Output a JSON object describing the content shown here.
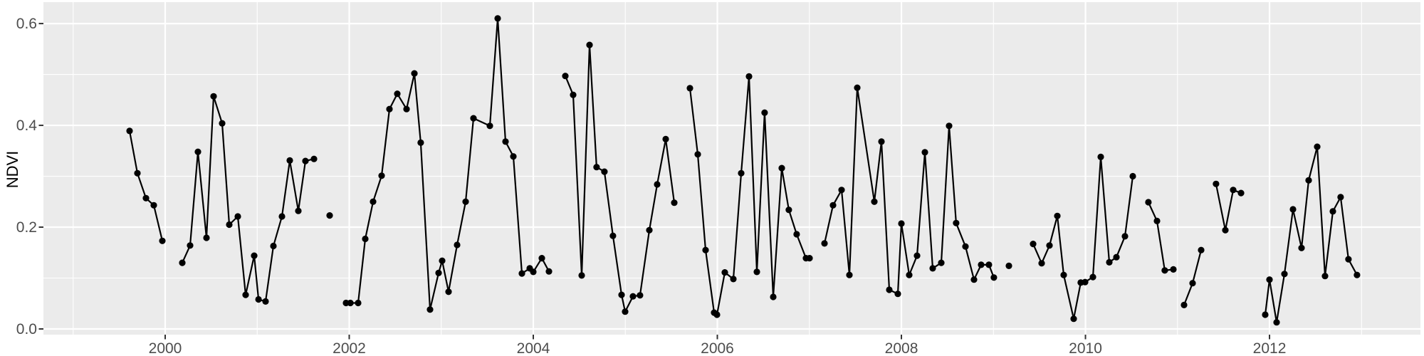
{
  "chart_data": {
    "type": "line",
    "title": "",
    "xlabel": "",
    "ylabel": "NDVI",
    "x_range": [
      1998.677,
      2013.64
    ],
    "y_range": [
      -0.0112,
      0.6421
    ],
    "x_ticks": {
      "values": [
        2000,
        2002,
        2004,
        2006,
        2008,
        2010,
        2012
      ],
      "labels": [
        "2000",
        "2002",
        "2004",
        "2006",
        "2008",
        "2010",
        "2012"
      ]
    },
    "x_minor_ticks": [
      1999,
      2001,
      2003,
      2005,
      2007,
      2009,
      2011,
      2013
    ],
    "y_ticks": {
      "values": [
        0.0,
        0.2,
        0.4,
        0.6
      ],
      "labels": [
        "0.0",
        "0.2",
        "0.4",
        "0.6"
      ]
    },
    "y_minor_ticks": [
      0.1,
      0.3,
      0.5
    ],
    "grid": true,
    "legend": false,
    "style": {
      "panel_bg": "#EBEBEB",
      "outer_bg": "#FFFFFF",
      "grid_color": "#FFFFFF",
      "line_color": "#000000",
      "point_color": "#000000",
      "axis_text_color": "#4D4D4D",
      "axis_title_color": "#000000",
      "tick_color": "#333333"
    },
    "series": [
      {
        "name": "NDVI",
        "segments": [
          {
            "points": [
              [
                1999.613,
                0.389
              ],
              [
                1999.698,
                0.306
              ],
              [
                1999.791,
                0.257
              ],
              [
                1999.876,
                0.243
              ],
              [
                1999.969,
                0.173
              ]
            ]
          },
          {
            "points": [
              [
                2000.186,
                0.13
              ],
              [
                2000.271,
                0.164
              ],
              [
                2000.356,
                0.348
              ],
              [
                2000.449,
                0.179
              ],
              [
                2000.526,
                0.457
              ],
              [
                2000.619,
                0.404
              ],
              [
                2000.696,
                0.205
              ],
              [
                2000.789,
                0.221
              ],
              [
                2000.874,
                0.067
              ],
              [
                2000.967,
                0.144
              ],
              [
                2001.014,
                0.058
              ],
              [
                2001.091,
                0.054
              ],
              [
                2001.176,
                0.163
              ],
              [
                2001.269,
                0.221
              ],
              [
                2001.354,
                0.331
              ],
              [
                2001.447,
                0.232
              ],
              [
                2001.524,
                0.33
              ],
              [
                2001.617,
                0.334
              ]
            ]
          },
          {
            "points": [
              [
                2001.787,
                0.223
              ]
            ]
          },
          {
            "points": [
              [
                2001.965,
                0.051
              ],
              [
                2002.012,
                0.051
              ],
              [
                2002.097,
                0.051
              ],
              [
                2002.174,
                0.177
              ],
              [
                2002.259,
                0.25
              ],
              [
                2002.352,
                0.301
              ],
              [
                2002.437,
                0.432
              ],
              [
                2002.522,
                0.462
              ],
              [
                2002.623,
                0.432
              ],
              [
                2002.708,
                0.502
              ],
              [
                2002.777,
                0.366
              ],
              [
                2002.878,
                0.038
              ],
              [
                2002.971,
                0.11
              ],
              [
                2003.01,
                0.134
              ],
              [
                2003.079,
                0.073
              ],
              [
                2003.172,
                0.165
              ],
              [
                2003.265,
                0.25
              ],
              [
                2003.35,
                0.414
              ],
              [
                2003.528,
                0.399
              ],
              [
                2003.613,
                0.61
              ],
              [
                2003.698,
                0.368
              ],
              [
                2003.783,
                0.339
              ],
              [
                2003.876,
                0.109
              ],
              [
                2003.961,
                0.119
              ],
              [
                2004.0,
                0.112
              ],
              [
                2004.093,
                0.139
              ],
              [
                2004.17,
                0.113
              ]
            ]
          },
          {
            "points": [
              [
                2004.348,
                0.497
              ],
              [
                2004.433,
                0.46
              ],
              [
                2004.526,
                0.105
              ],
              [
                2004.611,
                0.558
              ],
              [
                2004.688,
                0.318
              ],
              [
                2004.773,
                0.309
              ],
              [
                2004.866,
                0.183
              ],
              [
                2004.959,
                0.067
              ],
              [
                2004.998,
                0.034
              ],
              [
                2005.083,
                0.064
              ],
              [
                2005.16,
                0.066
              ],
              [
                2005.261,
                0.194
              ],
              [
                2005.346,
                0.284
              ],
              [
                2005.439,
                0.373
              ],
              [
                2005.532,
                0.248
              ]
            ]
          },
          {
            "points": [
              [
                2005.702,
                0.473
              ],
              [
                2005.787,
                0.343
              ],
              [
                2005.872,
                0.155
              ],
              [
                2005.965,
                0.032
              ],
              [
                2005.996,
                0.028
              ],
              [
                2006.081,
                0.111
              ],
              [
                2006.174,
                0.098
              ],
              [
                2006.259,
                0.306
              ],
              [
                2006.344,
                0.496
              ],
              [
                2006.429,
                0.112
              ],
              [
                2006.514,
                0.425
              ],
              [
                2006.607,
                0.063
              ],
              [
                2006.7,
                0.316
              ],
              [
                2006.777,
                0.234
              ],
              [
                2006.862,
                0.186
              ],
              [
                2006.963,
                0.139
              ],
              [
                2007.002,
                0.139
              ]
            ]
          },
          {
            "points": [
              [
                2007.164,
                0.168
              ],
              [
                2007.257,
                0.243
              ],
              [
                2007.35,
                0.273
              ],
              [
                2007.435,
                0.106
              ],
              [
                2007.52,
                0.474
              ],
              [
                2007.706,
                0.25
              ],
              [
                2007.783,
                0.368
              ],
              [
                2007.868,
                0.077
              ],
              [
                2007.961,
                0.069
              ],
              [
                2008.0,
                0.207
              ],
              [
                2008.085,
                0.106
              ],
              [
                2008.17,
                0.144
              ],
              [
                2008.255,
                0.347
              ],
              [
                2008.34,
                0.119
              ],
              [
                2008.433,
                0.13
              ],
              [
                2008.518,
                0.399
              ],
              [
                2008.595,
                0.208
              ],
              [
                2008.696,
                0.162
              ],
              [
                2008.789,
                0.097
              ],
              [
                2008.866,
                0.126
              ],
              [
                2008.951,
                0.126
              ],
              [
                2009.005,
                0.101
              ]
            ]
          },
          {
            "points": [
              [
                2009.168,
                0.124
              ]
            ]
          },
          {
            "points": [
              [
                2009.431,
                0.167
              ],
              [
                2009.524,
                0.129
              ],
              [
                2009.609,
                0.164
              ],
              [
                2009.694,
                0.222
              ],
              [
                2009.764,
                0.106
              ],
              [
                2009.872,
                0.02
              ],
              [
                2009.949,
                0.091
              ],
              [
                2009.996,
                0.092
              ],
              [
                2010.081,
                0.102
              ],
              [
                2010.166,
                0.338
              ],
              [
                2010.259,
                0.131
              ],
              [
                2010.336,
                0.141
              ],
              [
                2010.429,
                0.182
              ],
              [
                2010.514,
                0.3
              ]
            ]
          },
          {
            "points": [
              [
                2010.684,
                0.249
              ],
              [
                2010.777,
                0.212
              ],
              [
                2010.862,
                0.115
              ],
              [
                2010.955,
                0.117
              ]
            ]
          },
          {
            "points": [
              [
                2011.071,
                0.047
              ],
              [
                2011.164,
                0.09
              ],
              [
                2011.257,
                0.155
              ]
            ]
          },
          {
            "points": [
              [
                2011.419,
                0.285
              ],
              [
                2011.52,
                0.194
              ],
              [
                2011.605,
                0.273
              ],
              [
                2011.69,
                0.267
              ]
            ]
          },
          {
            "points": [
              [
                2011.953,
                0.028
              ],
              [
                2012.0,
                0.097
              ],
              [
                2012.077,
                0.013
              ],
              [
                2012.162,
                0.108
              ],
              [
                2012.255,
                0.235
              ],
              [
                2012.348,
                0.159
              ],
              [
                2012.425,
                0.292
              ],
              [
                2012.518,
                0.358
              ],
              [
                2012.603,
                0.104
              ],
              [
                2012.688,
                0.231
              ],
              [
                2012.773,
                0.259
              ],
              [
                2012.858,
                0.137
              ],
              [
                2012.951,
                0.106
              ]
            ]
          }
        ]
      }
    ]
  }
}
